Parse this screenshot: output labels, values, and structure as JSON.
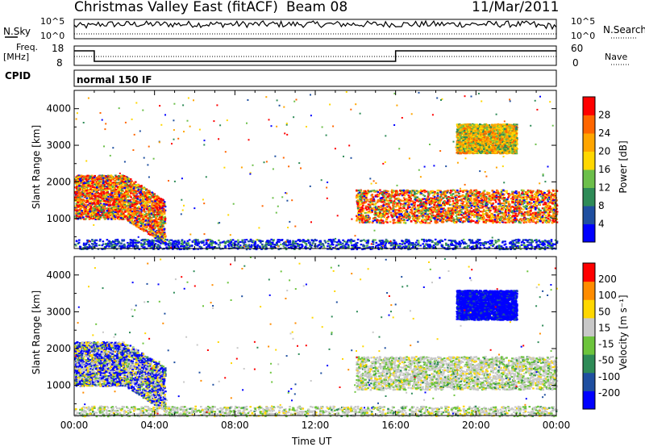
{
  "header": {
    "site_title": "Christmas Valley East (fitACF)",
    "beam_label": "Beam 08",
    "date": "11/Mar/2011"
  },
  "meta_panels": {
    "nsky_label": "N.Sky",
    "nsky_ticks": [
      "10^5",
      "10^0"
    ],
    "nsearch_label": "N.Search",
    "nsearch_ticks": [
      "10^5",
      "10^0"
    ],
    "freq_label_1": "Freq.",
    "freq_label_2": "[MHz]",
    "freq_ticks": [
      "18",
      "8"
    ],
    "nave_label": "Nave",
    "nave_ticks": [
      "60",
      "0"
    ],
    "cpid_label": "CPID",
    "cpid_value": "normal 150 IF"
  },
  "colors": {
    "power_scale": [
      "#0000ff",
      "#1f4fa0",
      "#2e8b57",
      "#6cbf4a",
      "#ffd700",
      "#ffa500",
      "#ff6600",
      "#ff0000"
    ],
    "velocity_scale": [
      "#0000ff",
      "#1f4fa0",
      "#2e8b57",
      "#6cc43c",
      "#c8c8c8",
      "#ffd700",
      "#ff8c00",
      "#ff0000"
    ]
  },
  "chart_data": [
    {
      "type": "heatmap",
      "panel": "power",
      "ylabel": "Slant Range [km]",
      "xlabel": "",
      "ylim": [
        180,
        4500
      ],
      "yticks": [
        1000,
        2000,
        3000,
        4000
      ],
      "xlim": [
        0,
        24
      ],
      "colorbar": {
        "label": "Power [dB]",
        "range": [
          0,
          32
        ],
        "tick_labels": [
          "28",
          "24",
          "20",
          "16",
          "12",
          "8",
          "4"
        ]
      },
      "scatter_regions": [
        {
          "t_start": 0.0,
          "t_end": 4.5,
          "r_min": 700,
          "r_max": 2600,
          "level": "high"
        },
        {
          "t_start": 14.0,
          "t_end": 24.0,
          "r_min": 900,
          "r_max": 1800,
          "level": "high"
        },
        {
          "t_start": 19.0,
          "t_end": 22.0,
          "r_min": 2800,
          "r_max": 3600,
          "level": "medium"
        },
        {
          "t_start": 0.0,
          "t_end": 24.0,
          "r_min": 180,
          "r_max": 450,
          "level": "low"
        }
      ]
    },
    {
      "type": "heatmap",
      "panel": "velocity",
      "ylabel": "Slant Range [km]",
      "xlabel": "Time UT",
      "ylim": [
        180,
        4500
      ],
      "yticks": [
        1000,
        2000,
        3000,
        4000
      ],
      "xlim": [
        0,
        24
      ],
      "xtick_labels": [
        "00:00",
        "04:00",
        "08:00",
        "12:00",
        "16:00",
        "20:00",
        "00:00"
      ],
      "colorbar": {
        "label": "Velocity [m s⁻¹]",
        "range": [
          -250,
          250
        ],
        "tick_labels": [
          "200",
          "100",
          "50",
          "15",
          "-15",
          "-50",
          "-100",
          "-200"
        ]
      },
      "scatter_regions": [
        {
          "t_start": 0.0,
          "t_end": 4.5,
          "r_min": 700,
          "r_max": 2600,
          "level": "mixed"
        },
        {
          "t_start": 14.0,
          "t_end": 24.0,
          "r_min": 900,
          "r_max": 1800,
          "level": "low"
        },
        {
          "t_start": 19.0,
          "t_end": 22.0,
          "r_min": 2800,
          "r_max": 3600,
          "level": "high"
        },
        {
          "t_start": 0.0,
          "t_end": 24.0,
          "r_min": 180,
          "r_max": 450,
          "level": "low"
        }
      ]
    }
  ]
}
